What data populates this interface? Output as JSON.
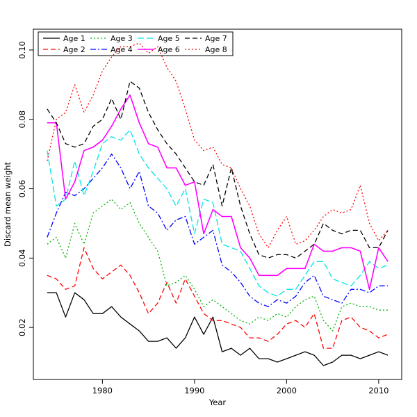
{
  "chart_data": {
    "type": "line",
    "title": "",
    "xlabel": "Year",
    "ylabel": "Discard mean weight",
    "xlim": [
      1972.5,
      2012.5
    ],
    "ylim": [
      0.005,
      0.106
    ],
    "xticks": [
      1980,
      1990,
      2000,
      2010
    ],
    "xtick_labels": [
      "1980",
      "1990",
      "2000",
      "2010"
    ],
    "yticks": [
      0.02,
      0.04,
      0.06,
      0.08,
      0.1
    ],
    "ytick_labels": [
      "0.02",
      "0.04",
      "0.06",
      "0.08",
      "0.10"
    ],
    "grid": false,
    "legend_position": "top-left",
    "x": [
      1974,
      1975,
      1976,
      1977,
      1978,
      1979,
      1980,
      1981,
      1982,
      1983,
      1984,
      1985,
      1986,
      1987,
      1988,
      1989,
      1990,
      1991,
      1992,
      1993,
      1994,
      1995,
      1996,
      1997,
      1998,
      1999,
      2000,
      2001,
      2002,
      2003,
      2004,
      2005,
      2006,
      2007,
      2008,
      2009,
      2010,
      2011
    ],
    "series": [
      {
        "name": "Age 1",
        "color": "#000000",
        "dash": "",
        "width": 1.3,
        "values": [
          0.03,
          0.03,
          0.023,
          0.03,
          0.028,
          0.024,
          0.024,
          0.026,
          0.023,
          0.021,
          0.019,
          0.016,
          0.016,
          0.017,
          0.014,
          0.017,
          0.023,
          0.018,
          0.023,
          0.013,
          0.014,
          0.012,
          0.014,
          0.011,
          0.011,
          0.01,
          0.011,
          0.012,
          0.013,
          0.012,
          0.009,
          0.01,
          0.012,
          0.012,
          0.011,
          0.012,
          0.013,
          0.012
        ]
      },
      {
        "name": "Age 2",
        "color": "#ff0000",
        "dash": "7,4",
        "width": 1.3,
        "values": [
          0.035,
          0.034,
          0.031,
          0.032,
          0.043,
          0.037,
          0.034,
          0.036,
          0.038,
          0.035,
          0.03,
          0.024,
          0.027,
          0.033,
          0.027,
          0.034,
          0.029,
          0.024,
          0.022,
          0.022,
          0.021,
          0.02,
          0.017,
          0.017,
          0.016,
          0.018,
          0.021,
          0.022,
          0.02,
          0.024,
          0.014,
          0.014,
          0.022,
          0.023,
          0.02,
          0.019,
          0.017,
          0.018
        ]
      },
      {
        "name": "Age 3",
        "color": "#00b400",
        "dash": "2,3",
        "width": 1.3,
        "values": [
          0.044,
          0.046,
          0.04,
          0.05,
          0.044,
          0.053,
          0.055,
          0.057,
          0.054,
          0.056,
          0.05,
          0.046,
          0.042,
          0.032,
          0.033,
          0.035,
          0.031,
          0.026,
          0.028,
          0.026,
          0.024,
          0.022,
          0.021,
          0.023,
          0.022,
          0.024,
          0.023,
          0.026,
          0.028,
          0.029,
          0.022,
          0.019,
          0.026,
          0.027,
          0.026,
          0.026,
          0.025,
          0.025
        ]
      },
      {
        "name": "Age 4",
        "color": "#0000ff",
        "dash": "8,3,2,3",
        "width": 1.3,
        "values": [
          0.046,
          0.053,
          0.059,
          0.058,
          0.06,
          0.063,
          0.066,
          0.07,
          0.066,
          0.06,
          0.065,
          0.055,
          0.053,
          0.048,
          0.051,
          0.052,
          0.044,
          0.046,
          0.048,
          0.038,
          0.036,
          0.033,
          0.029,
          0.027,
          0.026,
          0.028,
          0.027,
          0.029,
          0.033,
          0.035,
          0.029,
          0.028,
          0.027,
          0.031,
          0.031,
          0.03,
          0.032,
          0.032
        ]
      },
      {
        "name": "Age 5",
        "color": "#00e5e5",
        "dash": "9,4",
        "width": 1.3,
        "values": [
          0.071,
          0.055,
          0.057,
          0.068,
          0.058,
          0.065,
          0.073,
          0.075,
          0.074,
          0.077,
          0.07,
          0.066,
          0.063,
          0.06,
          0.055,
          0.06,
          0.047,
          0.057,
          0.056,
          0.044,
          0.043,
          0.042,
          0.037,
          0.032,
          0.03,
          0.029,
          0.031,
          0.031,
          0.035,
          0.039,
          0.039,
          0.034,
          0.033,
          0.032,
          0.035,
          0.039,
          0.037,
          0.038
        ]
      },
      {
        "name": "Age 6",
        "color": "#ff00ff",
        "dash": "",
        "width": 1.6,
        "values": [
          0.079,
          0.079,
          0.057,
          0.062,
          0.071,
          0.072,
          0.074,
          0.078,
          0.083,
          0.087,
          0.079,
          0.073,
          0.072,
          0.066,
          0.066,
          0.061,
          0.062,
          0.047,
          0.054,
          0.052,
          0.052,
          0.043,
          0.04,
          0.035,
          0.035,
          0.035,
          0.037,
          0.037,
          0.037,
          0.044,
          0.042,
          0.042,
          0.043,
          0.043,
          0.042,
          0.031,
          0.043,
          0.039
        ]
      },
      {
        "name": "Age 7",
        "color": "#000000",
        "dash": "7,4",
        "width": 1.3,
        "values": [
          0.083,
          0.079,
          0.073,
          0.072,
          0.073,
          0.078,
          0.08,
          0.086,
          0.08,
          0.091,
          0.089,
          0.082,
          0.077,
          0.073,
          0.07,
          0.066,
          0.062,
          0.061,
          0.067,
          0.055,
          0.066,
          0.055,
          0.047,
          0.041,
          0.04,
          0.041,
          0.041,
          0.04,
          0.042,
          0.044,
          0.05,
          0.048,
          0.047,
          0.048,
          0.048,
          0.043,
          0.043,
          0.048
        ]
      },
      {
        "name": "Age 8",
        "color": "#ff0000",
        "dash": "2,3",
        "width": 1.3,
        "values": [
          0.068,
          0.08,
          0.082,
          0.09,
          0.082,
          0.087,
          0.094,
          0.098,
          0.101,
          0.101,
          0.102,
          0.099,
          0.101,
          0.095,
          0.091,
          0.083,
          0.074,
          0.071,
          0.072,
          0.067,
          0.066,
          0.06,
          0.055,
          0.047,
          0.043,
          0.048,
          0.052,
          0.044,
          0.045,
          0.048,
          0.052,
          0.054,
          0.053,
          0.054,
          0.061,
          0.05,
          0.045,
          0.048
        ]
      }
    ]
  }
}
